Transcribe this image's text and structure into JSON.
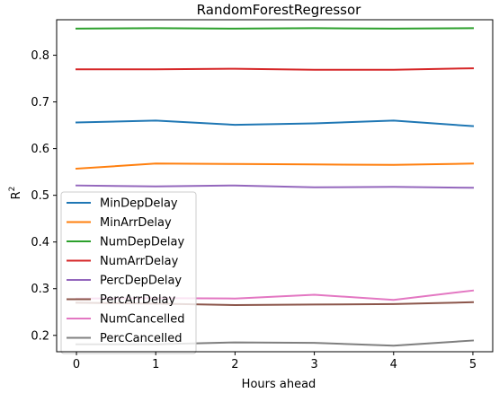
{
  "chart_data": {
    "type": "line",
    "title": "RandomForestRegressor",
    "xlabel": "Hours ahead",
    "ylabel": "R",
    "ylabel_sup": "2",
    "x": [
      0,
      1,
      2,
      3,
      4,
      5
    ],
    "xticks": [
      "0",
      "1",
      "2",
      "3",
      "4",
      "5"
    ],
    "yticks": [
      "0.2",
      "0.3",
      "0.4",
      "0.5",
      "0.6",
      "0.7",
      "0.8"
    ],
    "ytick_values": [
      0.2,
      0.3,
      0.4,
      0.5,
      0.6,
      0.7,
      0.8
    ],
    "xlim": [
      -0.25,
      5.25
    ],
    "ylim": [
      0.165,
      0.876
    ],
    "legend_position": "lower-left",
    "grid": false,
    "series": [
      {
        "name": "MinDepDelay",
        "color": "#1f77b4",
        "values": [
          0.656,
          0.66,
          0.651,
          0.654,
          0.66,
          0.648
        ]
      },
      {
        "name": "MinArrDelay",
        "color": "#ff7f0e",
        "values": [
          0.557,
          0.568,
          0.567,
          0.566,
          0.565,
          0.568
        ]
      },
      {
        "name": "NumDepDelay",
        "color": "#2ca02c",
        "values": [
          0.857,
          0.858,
          0.857,
          0.858,
          0.857,
          0.858
        ]
      },
      {
        "name": "NumArrDelay",
        "color": "#d62728",
        "values": [
          0.77,
          0.77,
          0.771,
          0.769,
          0.769,
          0.772
        ]
      },
      {
        "name": "PercDepDelay",
        "color": "#9467bd",
        "values": [
          0.521,
          0.519,
          0.521,
          0.517,
          0.518,
          0.516
        ]
      },
      {
        "name": "PercArrDelay",
        "color": "#8c564b",
        "values": [
          0.27,
          0.268,
          0.265,
          0.266,
          0.267,
          0.271
        ]
      },
      {
        "name": "NumCancelled",
        "color": "#e377c2",
        "values": [
          0.279,
          0.28,
          0.279,
          0.287,
          0.276,
          0.296
        ]
      },
      {
        "name": "PercCancelled",
        "color": "#7f7f7f",
        "values": [
          0.181,
          0.181,
          0.185,
          0.184,
          0.178,
          0.189
        ]
      }
    ]
  }
}
